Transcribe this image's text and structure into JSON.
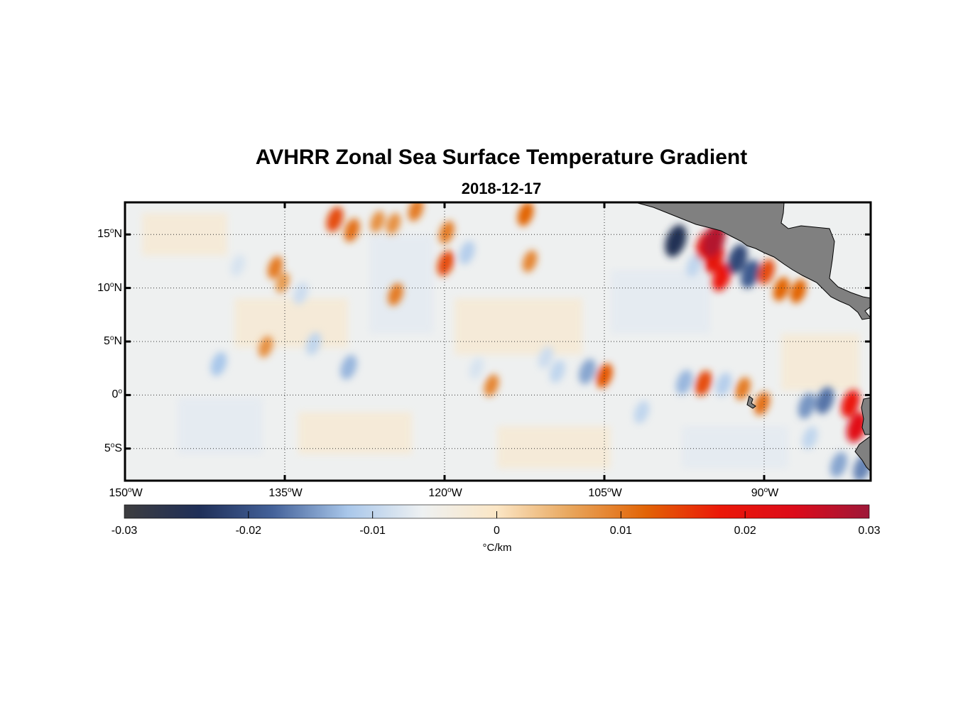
{
  "title": "AVHRR Zonal Sea Surface Temperature Gradient",
  "date": "2018-12-17",
  "map": {
    "lon_range": [
      -150,
      -80
    ],
    "lat_range": [
      -8,
      18
    ],
    "land_color": "#808080",
    "lat_ticks": [
      {
        "value": 15,
        "num": "15",
        "hemi": "N"
      },
      {
        "value": 10,
        "num": "10",
        "hemi": "N"
      },
      {
        "value": 5,
        "num": "5",
        "hemi": "N"
      },
      {
        "value": 0,
        "num": "0",
        "hemi": ""
      },
      {
        "value": -5,
        "num": "5",
        "hemi": "S"
      }
    ],
    "lon_ticks": [
      {
        "value": -150,
        "num": "150",
        "hemi": "W"
      },
      {
        "value": -135,
        "num": "135",
        "hemi": "W"
      },
      {
        "value": -120,
        "num": "120",
        "hemi": "W"
      },
      {
        "value": -105,
        "num": "105",
        "hemi": "W"
      },
      {
        "value": -90,
        "num": "90",
        "hemi": "W"
      }
    ],
    "features": [
      {
        "lon": -141.2,
        "lat": 2.9,
        "v": -0.012
      },
      {
        "lon": -139.4,
        "lat": 12.1,
        "v": -0.008
      },
      {
        "lon": -135.9,
        "lat": 11.9,
        "v": 0.01
      },
      {
        "lon": -135.2,
        "lat": 10.5,
        "v": 0.007
      },
      {
        "lon": -136.8,
        "lat": 4.5,
        "v": 0.008
      },
      {
        "lon": -133.5,
        "lat": 9.5,
        "v": -0.009
      },
      {
        "lon": -132.3,
        "lat": 4.8,
        "v": -0.01
      },
      {
        "lon": -130.3,
        "lat": 16.4,
        "v": 0.014
      },
      {
        "lon": -128.7,
        "lat": 15.4,
        "v": 0.011
      },
      {
        "lon": -129.0,
        "lat": 2.6,
        "v": -0.013
      },
      {
        "lon": -126.3,
        "lat": 16.2,
        "v": 0.008
      },
      {
        "lon": -124.8,
        "lat": 16.0,
        "v": 0.008
      },
      {
        "lon": -124.6,
        "lat": 9.4,
        "v": 0.01
      },
      {
        "lon": -122.7,
        "lat": 17.3,
        "v": 0.01
      },
      {
        "lon": -119.9,
        "lat": 12.3,
        "v": 0.014
      },
      {
        "lon": -119.8,
        "lat": 15.2,
        "v": 0.01
      },
      {
        "lon": -117.9,
        "lat": 13.3,
        "v": -0.011
      },
      {
        "lon": -115.6,
        "lat": 0.9,
        "v": 0.009
      },
      {
        "lon": -117.0,
        "lat": 2.5,
        "v": -0.008
      },
      {
        "lon": -112.4,
        "lat": 16.9,
        "v": 0.012
      },
      {
        "lon": -112.0,
        "lat": 12.5,
        "v": 0.009
      },
      {
        "lon": -110.5,
        "lat": 3.5,
        "v": -0.009
      },
      {
        "lon": -109.4,
        "lat": 2.2,
        "v": -0.01
      },
      {
        "lon": -106.6,
        "lat": 2.2,
        "v": -0.014
      },
      {
        "lon": -105.0,
        "lat": 1.8,
        "v": 0.013
      },
      {
        "lon": -98.3,
        "lat": 14.4,
        "v": -0.025
      },
      {
        "lon": -96.6,
        "lat": 12.1,
        "v": -0.01
      },
      {
        "lon": -95.5,
        "lat": 14.0,
        "v": 0.02
      },
      {
        "lon": -94.7,
        "lat": 12.8,
        "v": 0.021
      },
      {
        "lon": -94.0,
        "lat": 11.0,
        "v": 0.018
      },
      {
        "lon": -94.7,
        "lat": 14.5,
        "v": 0.028
      },
      {
        "lon": -92.5,
        "lat": 12.7,
        "v": -0.021
      },
      {
        "lon": -91.3,
        "lat": 11.3,
        "v": -0.019
      },
      {
        "lon": -89.8,
        "lat": 11.5,
        "v": 0.014
      },
      {
        "lon": -88.4,
        "lat": 9.9,
        "v": 0.012
      },
      {
        "lon": -86.8,
        "lat": 9.7,
        "v": 0.012
      },
      {
        "lon": -97.5,
        "lat": 1.2,
        "v": -0.013
      },
      {
        "lon": -95.7,
        "lat": 1.1,
        "v": 0.014
      },
      {
        "lon": -93.8,
        "lat": 1.0,
        "v": -0.011
      },
      {
        "lon": -92.0,
        "lat": 0.6,
        "v": 0.01
      },
      {
        "lon": -90.2,
        "lat": -0.8,
        "v": 0.011
      },
      {
        "lon": -101.5,
        "lat": -1.6,
        "v": -0.01
      },
      {
        "lon": -86.0,
        "lat": -1.0,
        "v": -0.015
      },
      {
        "lon": -84.3,
        "lat": -0.5,
        "v": -0.017
      },
      {
        "lon": -81.9,
        "lat": -0.8,
        "v": 0.018
      },
      {
        "lon": -81.3,
        "lat": -3.0,
        "v": 0.022
      },
      {
        "lon": -83.0,
        "lat": -6.5,
        "v": -0.014
      },
      {
        "lon": -80.8,
        "lat": -6.8,
        "v": -0.016
      },
      {
        "lon": -85.7,
        "lat": -4.0,
        "v": -0.01
      }
    ]
  },
  "colorbar": {
    "min": -0.03,
    "max": 0.03,
    "ticks": [
      "-0.03",
      "-0.02",
      "-0.01",
      "0",
      "0.01",
      "0.02",
      "0.03"
    ],
    "units": "°C/km",
    "colors": [
      "#3d3d3f",
      "#1f2f58",
      "#44629a",
      "#a9c7ea",
      "#eef1f2",
      "#fbe6c5",
      "#e8a55b",
      "#e26406",
      "#eb1808",
      "#dc0b1a",
      "#9e1839"
    ]
  }
}
